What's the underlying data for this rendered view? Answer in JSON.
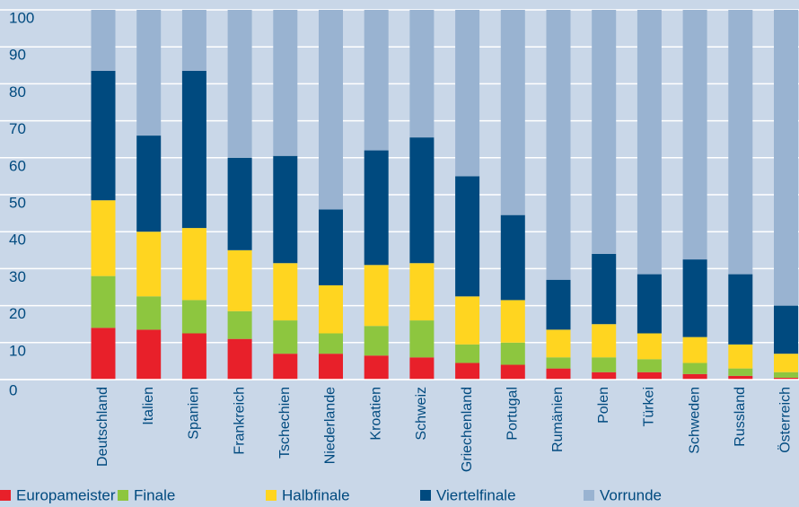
{
  "chart_data": {
    "type": "stacked_bar",
    "categories": [
      "Deutschland",
      "Italien",
      "Spanien",
      "Frankreich",
      "Tschechien",
      "Niederlande",
      "Kroatien",
      "Schweiz",
      "Griechenland",
      "Portugal",
      "Rumänien",
      "Polen",
      "Türkei",
      "Schweden",
      "Russland",
      "Österreich"
    ],
    "series": [
      {
        "name": "Europameister",
        "color": "#e8202a",
        "values": [
          14,
          13.5,
          12.5,
          11,
          7,
          7,
          6.5,
          6,
          4.5,
          4,
          3,
          2,
          2,
          1.5,
          1,
          0.5
        ]
      },
      {
        "name": "Finale",
        "color": "#8dc63f",
        "values": [
          14,
          9,
          9,
          7.5,
          9,
          5.5,
          8,
          10,
          5,
          6,
          3,
          4,
          3.5,
          3,
          2,
          1.5
        ]
      },
      {
        "name": "Halbfinale",
        "color": "#ffd520",
        "values": [
          20.5,
          17.5,
          19.5,
          16.5,
          15.5,
          13,
          16.5,
          15.5,
          13,
          11.5,
          7.5,
          9,
          7,
          7,
          6.5,
          5
        ]
      },
      {
        "name": "Viertelfinale",
        "color": "#004a7f",
        "values": [
          35,
          26,
          42.5,
          25,
          29,
          20.5,
          31,
          34,
          32.5,
          23,
          13.5,
          19,
          16,
          21,
          19,
          13
        ]
      },
      {
        "name": "Vorrunde",
        "color": "#99b3d1",
        "values": [
          16.5,
          34,
          16.5,
          40,
          39.5,
          54,
          38,
          34.5,
          45,
          55.5,
          73,
          66,
          71.5,
          67.5,
          71.5,
          80
        ]
      }
    ],
    "ylim": [
      0,
      100
    ],
    "yticks": [
      0,
      10,
      20,
      30,
      40,
      50,
      60,
      70,
      80,
      90,
      100
    ],
    "grid": true
  }
}
